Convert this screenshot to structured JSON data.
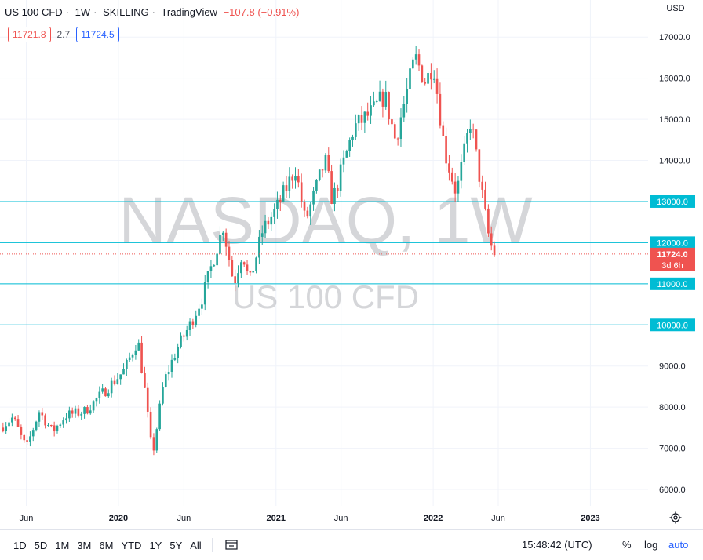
{
  "header": {
    "symbol": "US 100 CFD",
    "interval": "1W",
    "author": "SKILLING",
    "platform": "TradingView",
    "change": "−107.8 (−0.91%)",
    "sep": "·"
  },
  "quote": {
    "bid": "11721.8",
    "spread": "2.7",
    "ask": "11724.5"
  },
  "currency": "USD",
  "watermark": {
    "main": "NASDAQ, 1W",
    "sub": "US 100 CFD"
  },
  "last_price": {
    "value": "11724.0",
    "countdown": "3d 6h"
  },
  "toolbar": {
    "ranges": [
      "1D",
      "5D",
      "1M",
      "3M",
      "6M",
      "YTD",
      "1Y",
      "5Y",
      "All"
    ],
    "time": "15:48:42 (UTC)",
    "percent": "%",
    "log": "log",
    "auto": "auto"
  },
  "colors": {
    "up": "#26a69a",
    "down": "#ef5350",
    "level": "#00bcd4",
    "last": "#ef5350",
    "grid": "#f0f3fa"
  },
  "icons": {
    "settings": "gear-icon",
    "compare": "calendar-range-icon"
  },
  "chart_data": {
    "type": "candlestick",
    "y_axis": {
      "side": "right",
      "ticks": [
        6000,
        7000,
        8000,
        9000,
        10000,
        11000,
        12000,
        13000,
        14000,
        15000,
        16000,
        17000
      ],
      "ylim": [
        5600,
        17900
      ]
    },
    "x_axis": {
      "labels": [
        {
          "label": "Jun",
          "date": "2019-06-01"
        },
        {
          "label": "2020",
          "date": "2020-01-01"
        },
        {
          "label": "Jun",
          "date": "2020-06-01"
        },
        {
          "label": "2021",
          "date": "2021-01-01"
        },
        {
          "label": "Jun",
          "date": "2021-06-01"
        },
        {
          "label": "2022",
          "date": "2022-01-01"
        },
        {
          "label": "Jun",
          "date": "2022-06-01"
        },
        {
          "label": "2023",
          "date": "2023-01-01"
        }
      ],
      "xlim": [
        "2019-04-01",
        "2023-05-15"
      ]
    },
    "horizontal_levels": [
      {
        "price": 13000,
        "label": "13000.0"
      },
      {
        "price": 12000,
        "label": "12000.0"
      },
      {
        "price": 11000,
        "label": "11000.0"
      },
      {
        "price": 10000,
        "label": "10000.0"
      }
    ],
    "last_price": 11724.0,
    "candle_interval": "1W",
    "key_points": [
      {
        "date": "2019-04-01",
        "close": 7500
      },
      {
        "date": "2019-05-01",
        "close": 7750
      },
      {
        "date": "2019-06-01",
        "close": 7000
      },
      {
        "date": "2019-07-01",
        "close": 7900
      },
      {
        "date": "2019-08-01",
        "close": 7400
      },
      {
        "date": "2019-09-01",
        "close": 7800
      },
      {
        "date": "2019-10-15",
        "close": 7900
      },
      {
        "date": "2019-12-01",
        "close": 8400
      },
      {
        "date": "2020-01-15",
        "close": 8900
      },
      {
        "date": "2020-02-15",
        "close": 9650
      },
      {
        "date": "2020-03-01",
        "close": 8500
      },
      {
        "date": "2020-03-20",
        "close": 6800
      },
      {
        "date": "2020-04-15",
        "close": 8600
      },
      {
        "date": "2020-05-15",
        "close": 9400
      },
      {
        "date": "2020-06-15",
        "close": 10000
      },
      {
        "date": "2020-07-15",
        "close": 10700
      },
      {
        "date": "2020-08-31",
        "close": 12400
      },
      {
        "date": "2020-09-25",
        "close": 11000
      },
      {
        "date": "2020-10-15",
        "close": 11800
      },
      {
        "date": "2020-10-31",
        "close": 11000
      },
      {
        "date": "2020-12-01",
        "close": 12300
      },
      {
        "date": "2021-01-01",
        "close": 12800
      },
      {
        "date": "2021-02-15",
        "close": 13800
      },
      {
        "date": "2021-03-10",
        "close": 12500
      },
      {
        "date": "2021-04-25",
        "close": 14000
      },
      {
        "date": "2021-05-12",
        "close": 13000
      },
      {
        "date": "2021-07-01",
        "close": 14800
      },
      {
        "date": "2021-08-15",
        "close": 15200
      },
      {
        "date": "2021-09-10",
        "close": 15600
      },
      {
        "date": "2021-10-05",
        "close": 14500
      },
      {
        "date": "2021-11-20",
        "close": 16500
      },
      {
        "date": "2021-12-15",
        "close": 15900
      },
      {
        "date": "2022-01-01",
        "close": 16400
      },
      {
        "date": "2022-01-28",
        "close": 14200
      },
      {
        "date": "2022-02-24",
        "close": 13200
      },
      {
        "date": "2022-03-29",
        "close": 15000
      },
      {
        "date": "2022-04-30",
        "close": 12800
      },
      {
        "date": "2022-05-12",
        "close": 12000
      },
      {
        "date": "2022-05-24",
        "close": 11724
      }
    ]
  }
}
